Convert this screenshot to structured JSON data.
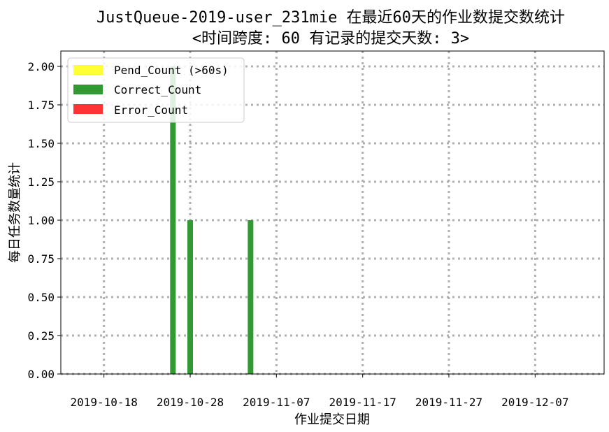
{
  "chart_data": {
    "type": "bar",
    "title_line1": "JustQueue-2019-user_231mie 在最近60天的作业数提交数统计",
    "title_line2": "<时间跨度: 60  有记录的提交天数: 3>",
    "xlabel": "作业提交日期",
    "ylabel": "每日任务数量统计",
    "x_tick_labels": [
      "2019-10-18",
      "2019-10-28",
      "2019-11-07",
      "2019-11-17",
      "2019-11-27",
      "2019-12-07"
    ],
    "x_tick_values": [
      "2019-10-18",
      "2019-10-28",
      "2019-11-07",
      "2019-11-17",
      "2019-11-27",
      "2019-12-07"
    ],
    "xlim": [
      "2019-10-13",
      "2019-12-15"
    ],
    "y_tick_labels": [
      "0.00",
      "0.25",
      "0.50",
      "0.75",
      "1.00",
      "1.25",
      "1.50",
      "1.75",
      "2.00"
    ],
    "ylim": [
      0,
      2.1
    ],
    "grid": true,
    "legend_position": "upper-left",
    "series": [
      {
        "name": "Pend_Count (>60s)",
        "color": "#ffff33",
        "points": []
      },
      {
        "name": "Correct_Count",
        "color": "#339933",
        "points": [
          {
            "date": "2019-10-26",
            "value": 2
          },
          {
            "date": "2019-10-28",
            "value": 1
          },
          {
            "date": "2019-11-04",
            "value": 1
          }
        ]
      },
      {
        "name": "Error_Count",
        "color": "#ff3333",
        "points": []
      }
    ]
  }
}
